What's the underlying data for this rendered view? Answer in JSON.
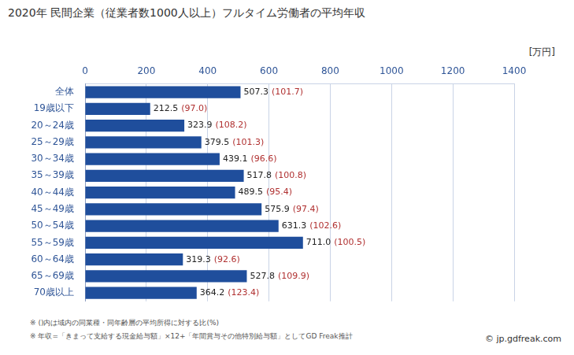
{
  "chart_data": {
    "type": "bar",
    "orientation": "horizontal",
    "title": "2020年 民間企業（従業者数1000人以上）フルタイム労働者の平均年収",
    "x_label": "[万円]",
    "categories": [
      "全体",
      "19歳以下",
      "20～24歳",
      "25～29歳",
      "30～34歳",
      "35～39歳",
      "40～44歳",
      "45～49歳",
      "50～54歳",
      "55～59歳",
      "60～64歳",
      "65～69歳",
      "70歳以上"
    ],
    "values": [
      507.3,
      212.5,
      323.9,
      379.5,
      439.1,
      517.8,
      489.5,
      575.9,
      631.3,
      711.0,
      319.3,
      527.8,
      364.2
    ],
    "value_labels": [
      "507.3",
      "212.5",
      "323.9",
      "379.5",
      "439.1",
      "517.8",
      "489.5",
      "575.9",
      "631.3",
      "711.0",
      "319.3",
      "527.8",
      "364.2"
    ],
    "ratio_labels": [
      "(101.7)",
      "(97.0)",
      "(108.2)",
      "(101.3)",
      "(96.6)",
      "(100.8)",
      "(95.4)",
      "(97.4)",
      "(102.6)",
      "(100.5)",
      "(92.6)",
      "(109.9)",
      "(123.4)"
    ],
    "color": "#1f4e9c",
    "xlim": [
      0,
      1400
    ],
    "xticks": [
      0,
      200,
      400,
      600,
      800,
      1000,
      1200,
      1400
    ],
    "grid": true,
    "data_labels": true,
    "annotations": [
      "※ ()内は域内の同業種・同年齢層の平均所得に対する比(%)",
      "※ 年収=「きまって支給する現金給与額」×12+「年間賞与その他特別給与額」としてGD Freak推計"
    ],
    "source": "© jp.gdfreak.com"
  }
}
